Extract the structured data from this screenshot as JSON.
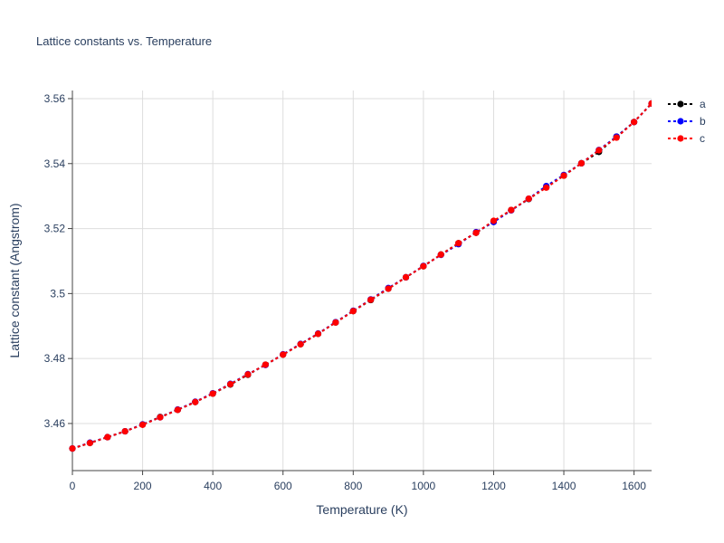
{
  "chart_data": {
    "type": "line",
    "title": "Lattice constants vs. Temperature",
    "xlabel": "Temperature (K)",
    "ylabel": "Lattice constant (Angstrom)",
    "xlim": [
      0,
      1650
    ],
    "ylim": [
      3.4455,
      3.5625
    ],
    "x_ticks": [
      0,
      200,
      400,
      600,
      800,
      1000,
      1200,
      1400,
      1600
    ],
    "x_tick_labels": [
      "0",
      "200",
      "400",
      "600",
      "800",
      "1000",
      "1200",
      "1400",
      "1600"
    ],
    "y_ticks": [
      3.46,
      3.48,
      3.5,
      3.52,
      3.54,
      3.56
    ],
    "y_tick_labels": [
      "3.46",
      "3.48",
      "3.5",
      "3.52",
      "3.54",
      "3.56"
    ],
    "grid": true,
    "legend_position": "top-right",
    "x": [
      0,
      50,
      100,
      150,
      200,
      250,
      300,
      350,
      400,
      450,
      500,
      550,
      600,
      650,
      700,
      750,
      800,
      850,
      900,
      950,
      1000,
      1050,
      1100,
      1150,
      1200,
      1250,
      1300,
      1350,
      1400,
      1450,
      1500,
      1550,
      1600,
      1650
    ],
    "series": [
      {
        "name": "a",
        "color": "#000000",
        "values": [
          3.4523,
          3.454,
          3.4558,
          3.4576,
          3.4597,
          3.462,
          3.4642,
          3.4666,
          3.4692,
          3.472,
          3.475,
          3.4781,
          3.4812,
          3.4844,
          3.4876,
          3.4911,
          3.4946,
          3.498,
          3.5015,
          3.505,
          3.5084,
          3.512,
          3.5155,
          3.5187,
          3.5222,
          3.5257,
          3.5291,
          3.5327,
          3.5363,
          3.5401,
          3.5436,
          3.5483,
          3.5528,
          3.5585
        ]
      },
      {
        "name": "b",
        "color": "#0000ff",
        "values": [
          3.4523,
          3.4541,
          3.4558,
          3.4576,
          3.4597,
          3.4619,
          3.4643,
          3.4667,
          3.4693,
          3.4722,
          3.4752,
          3.478,
          3.4813,
          3.4845,
          3.4877,
          3.4912,
          3.4947,
          3.4982,
          3.5017,
          3.505,
          3.5085,
          3.5119,
          3.5152,
          3.5189,
          3.522,
          3.5256,
          3.5292,
          3.5331,
          3.5365,
          3.5401,
          3.5442,
          3.5483,
          3.5528,
          3.5585
        ]
      },
      {
        "name": "c",
        "color": "#ff0000",
        "values": [
          3.4523,
          3.454,
          3.4558,
          3.4576,
          3.4596,
          3.4619,
          3.4642,
          3.4666,
          3.4692,
          3.4721,
          3.4751,
          3.4781,
          3.4812,
          3.4844,
          3.4876,
          3.4911,
          3.4946,
          3.4981,
          3.5015,
          3.505,
          3.5084,
          3.512,
          3.5155,
          3.5187,
          3.5224,
          3.5257,
          3.5292,
          3.5326,
          3.5363,
          3.5401,
          3.5441,
          3.548,
          3.5528,
          3.5585
        ]
      }
    ]
  }
}
